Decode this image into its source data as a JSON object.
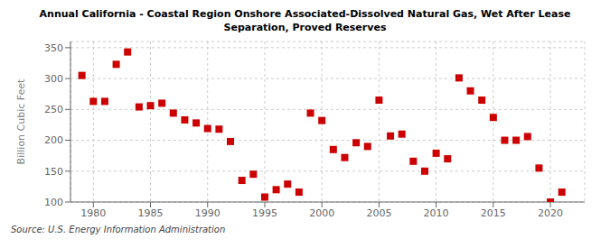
{
  "chart_data": {
    "type": "scatter",
    "title": "Annual California - Coastal Region Onshore Associated-Dissolved Natural Gas, Wet After Lease\nSeparation, Proved Reserves",
    "ylabel": "Billion Cubic Feet",
    "source": "Source: U.S. Energy Information Administration",
    "x": [
      1979,
      1980,
      1981,
      1982,
      1983,
      1984,
      1985,
      1986,
      1987,
      1988,
      1989,
      1990,
      1991,
      1992,
      1993,
      1994,
      1995,
      1996,
      1997,
      1998,
      1999,
      2000,
      2001,
      2002,
      2003,
      2004,
      2005,
      2006,
      2007,
      2008,
      2009,
      2010,
      2011,
      2012,
      2013,
      2014,
      2015,
      2016,
      2017,
      2018,
      2019,
      2020,
      2021
    ],
    "values": [
      305,
      263,
      263,
      323,
      343,
      254,
      256,
      260,
      244,
      233,
      228,
      219,
      218,
      198,
      135,
      145,
      108,
      120,
      129,
      116,
      244,
      232,
      185,
      172,
      196,
      190,
      265,
      207,
      210,
      166,
      150,
      179,
      170,
      301,
      280,
      265,
      237,
      200,
      200,
      206,
      155,
      100,
      116
    ],
    "xlim": [
      1978,
      2023
    ],
    "ylim": [
      100,
      360
    ],
    "xticks": [
      1980,
      1985,
      1990,
      1995,
      2000,
      2005,
      2010,
      2015,
      2020
    ],
    "yticks": [
      100,
      150,
      200,
      250,
      300,
      350
    ],
    "color": "#cc0000",
    "marker": "square",
    "grid": true
  }
}
